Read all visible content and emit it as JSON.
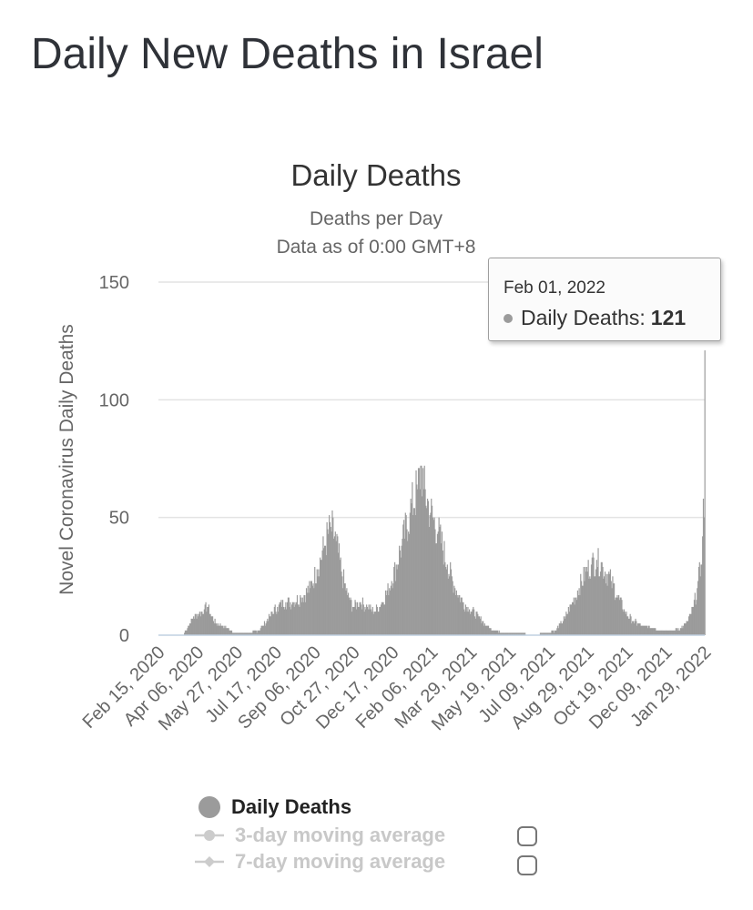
{
  "page": {
    "title": "Daily New Deaths in Israel"
  },
  "chart_data": {
    "type": "bar",
    "title": "Daily Deaths",
    "subtitle_lines": [
      "Deaths per Day",
      "Data as of 0:00 GMT+8"
    ],
    "ylabel": "Novel Coronavirus Daily Deaths",
    "xlabel": "",
    "ylim": [
      0,
      150
    ],
    "yticks": [
      0,
      50,
      100,
      150
    ],
    "xlim": [
      "2020-02-15",
      "2022-02-01"
    ],
    "xtick_labels": [
      "Feb 15, 2020",
      "Apr 06, 2020",
      "May 27, 2020",
      "Jul 17, 2020",
      "Sep 06, 2020",
      "Oct 27, 2020",
      "Dec 17, 2020",
      "Feb 06, 2021",
      "Mar 29, 2021",
      "May 19, 2021",
      "Jul 09, 2021",
      "Aug 29, 2021",
      "Oct 19, 2021",
      "Dec 09, 2021",
      "Jan 29, 2022"
    ],
    "bar_color": "#9b9b9b",
    "grid": true,
    "series": [
      {
        "name": "Daily Deaths",
        "points": [
          [
            "2020-02-15",
            0
          ],
          [
            "2020-03-19",
            0
          ],
          [
            "2020-03-20",
            1
          ],
          [
            "2020-03-25",
            4
          ],
          [
            "2020-04-01",
            8
          ],
          [
            "2020-04-08",
            9
          ],
          [
            "2020-04-15",
            11
          ],
          [
            "2020-04-20",
            12
          ],
          [
            "2020-04-24",
            8
          ],
          [
            "2020-05-01",
            5
          ],
          [
            "2020-05-08",
            4
          ],
          [
            "2020-05-15",
            3
          ],
          [
            "2020-05-20",
            2
          ],
          [
            "2020-05-27",
            1
          ],
          [
            "2020-06-05",
            1
          ],
          [
            "2020-06-15",
            1
          ],
          [
            "2020-06-25",
            2
          ],
          [
            "2020-07-01",
            4
          ],
          [
            "2020-07-10",
            8
          ],
          [
            "2020-07-20",
            12
          ],
          [
            "2020-07-31",
            14
          ],
          [
            "2020-08-10",
            14
          ],
          [
            "2020-08-20",
            16
          ],
          [
            "2020-09-01",
            20
          ],
          [
            "2020-09-10",
            28
          ],
          [
            "2020-09-20",
            38
          ],
          [
            "2020-09-28",
            46
          ],
          [
            "2020-10-05",
            40
          ],
          [
            "2020-10-12",
            27
          ],
          [
            "2020-10-20",
            17
          ],
          [
            "2020-10-27",
            12
          ],
          [
            "2020-11-05",
            14
          ],
          [
            "2020-11-15",
            12
          ],
          [
            "2020-11-25",
            10
          ],
          [
            "2020-12-05",
            14
          ],
          [
            "2020-12-17",
            23
          ],
          [
            "2020-12-30",
            38
          ],
          [
            "2021-01-10",
            52
          ],
          [
            "2021-01-20",
            62
          ],
          [
            "2021-01-25",
            72
          ],
          [
            "2021-01-28",
            62
          ],
          [
            "2021-02-06",
            52
          ],
          [
            "2021-02-16",
            44
          ],
          [
            "2021-02-28",
            30
          ],
          [
            "2021-03-10",
            20
          ],
          [
            "2021-03-20",
            14
          ],
          [
            "2021-03-29",
            11
          ],
          [
            "2021-04-10",
            8
          ],
          [
            "2021-04-20",
            4
          ],
          [
            "2021-05-01",
            2
          ],
          [
            "2021-05-10",
            1
          ],
          [
            "2021-05-19",
            1
          ],
          [
            "2021-06-01",
            1
          ],
          [
            "2021-06-20",
            0
          ],
          [
            "2021-07-09",
            1
          ],
          [
            "2021-07-20",
            2
          ],
          [
            "2021-08-01",
            7
          ],
          [
            "2021-08-10",
            13
          ],
          [
            "2021-08-20",
            20
          ],
          [
            "2021-08-29",
            27
          ],
          [
            "2021-09-05",
            30
          ],
          [
            "2021-09-12",
            32
          ],
          [
            "2021-09-20",
            29
          ],
          [
            "2021-10-01",
            23
          ],
          [
            "2021-10-10",
            16
          ],
          [
            "2021-10-19",
            10
          ],
          [
            "2021-10-30",
            6
          ],
          [
            "2021-11-10",
            4
          ],
          [
            "2021-11-25",
            3
          ],
          [
            "2021-12-09",
            2
          ],
          [
            "2021-12-20",
            2
          ],
          [
            "2022-01-01",
            3
          ],
          [
            "2022-01-10",
            6
          ],
          [
            "2022-01-17",
            12
          ],
          [
            "2022-01-22",
            20
          ],
          [
            "2022-01-27",
            30
          ],
          [
            "2022-01-29",
            42
          ],
          [
            "2022-01-30",
            58
          ],
          [
            "2022-01-31",
            50
          ],
          [
            "2022-02-01",
            121
          ]
        ]
      },
      {
        "name": "3-day moving average",
        "visible": false
      },
      {
        "name": "7-day moving average",
        "visible": false
      }
    ],
    "tooltip": {
      "date": "Feb 01, 2022",
      "label": "Daily Deaths:",
      "value": "121"
    }
  }
}
